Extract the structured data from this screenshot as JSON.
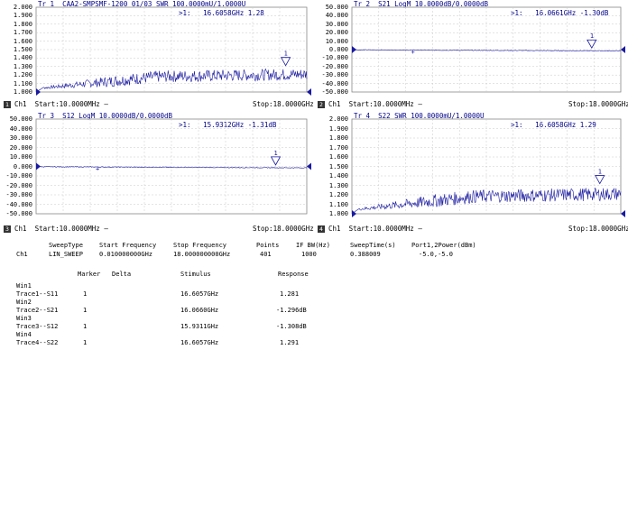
{
  "colors": {
    "trace": "#1a1aa0",
    "grid": "#c8c8c8",
    "text": "#00008b"
  },
  "panes": [
    {
      "id": "1",
      "title": "Tr 1  CAA2-SMPSMF-1200 01/03 SWR 100.0000mU/1.0000U",
      "marker_text": ">1:   16.6058GHz 1.28",
      "y_ticks": [
        "2.000",
        "1.900",
        "1.800",
        "1.700",
        "1.600",
        "1.500",
        "1.400",
        "1.300",
        "1.200",
        "1.100",
        "1.000"
      ],
      "start": "Ch1  Start:10.0000MHz —",
      "stop": "Stop:18.0000GHz",
      "chan_num": "1",
      "trace": {
        "type": "swr",
        "base": 1.0,
        "min": 1.0,
        "max": 2.0,
        "marker": 1.28
      }
    },
    {
      "id": "2",
      "title": "Tr 2  S21 LogM 10.0000dB/0.0000dB",
      "marker_text": ">1:   16.0661GHz -1.30dB",
      "y_ticks": [
        "50.000",
        "40.000",
        "30.000",
        "20.000",
        "10.000",
        "0.000",
        "-10.000",
        "-20.000",
        "-30.000",
        "-40.000",
        "-50.000"
      ],
      "start": "Ch1  Start:10.0000MHz —",
      "stop": "Stop:18.0000GHz",
      "chan_num": "2",
      "trace": {
        "type": "logm",
        "min": -50,
        "max": 50,
        "marker": -1.3
      }
    },
    {
      "id": "3",
      "title": "Tr 3  S12 LogM 10.0000dB/0.0000dB",
      "marker_text": ">1:   15.9312GHz -1.31dB",
      "y_ticks": [
        "50.000",
        "40.000",
        "30.000",
        "20.000",
        "10.000",
        "0.000",
        "-10.000",
        "-20.000",
        "-30.000",
        "-40.000",
        "-50.000"
      ],
      "start": "Ch1  Start:10.0000MHz —",
      "stop": "Stop:18.0000GHz",
      "chan_num": "3",
      "trace": {
        "type": "logm",
        "min": -50,
        "max": 50,
        "marker": -1.31
      }
    },
    {
      "id": "4",
      "title": "Tr 4  S22 SWR 100.0000mU/1.0000U",
      "marker_text": ">1:   16.6058GHz 1.29",
      "y_ticks": [
        "2.000",
        "1.900",
        "1.800",
        "1.700",
        "1.600",
        "1.500",
        "1.400",
        "1.300",
        "1.200",
        "1.100",
        "1.000"
      ],
      "start": "Ch1  Start:10.0000MHz —",
      "stop": "Stop:18.0000GHz",
      "chan_num": "4",
      "trace": {
        "type": "swr",
        "base": 1.0,
        "min": 1.0,
        "max": 2.0,
        "marker": 1.29
      }
    }
  ],
  "sweep": {
    "headers": [
      "SweepType",
      "Start Frequency",
      "Stop Frequency",
      "Points",
      "IF BW(Hz)",
      "SweepTime(s)",
      "Port1,2Power(dBm)"
    ],
    "ch": "Ch1",
    "values": [
      "LIN_SWEEP",
      "0.010000000GHz",
      "18.000000000GHz",
      "401",
      "1000",
      "0.388009",
      "-5.0,-5.0"
    ]
  },
  "marker_table": {
    "headers": [
      "Marker",
      "Delta",
      "Stimulus",
      "Response"
    ],
    "rows": [
      {
        "win": "Win1",
        "trace": "Trace1--S11",
        "marker": "1",
        "stimulus": "16.6057GHz",
        "response": "1.281"
      },
      {
        "win": "Win2",
        "trace": "Trace2--S21",
        "marker": "1",
        "stimulus": "16.0660GHz",
        "response": "-1.296dB"
      },
      {
        "win": "Win3",
        "trace": "Trace3--S12",
        "marker": "1",
        "stimulus": "15.9311GHz",
        "response": "-1.308dB"
      },
      {
        "win": "Win4",
        "trace": "Trace4--S22",
        "marker": "1",
        "stimulus": "16.6057GHz",
        "response": "1.291"
      }
    ]
  }
}
